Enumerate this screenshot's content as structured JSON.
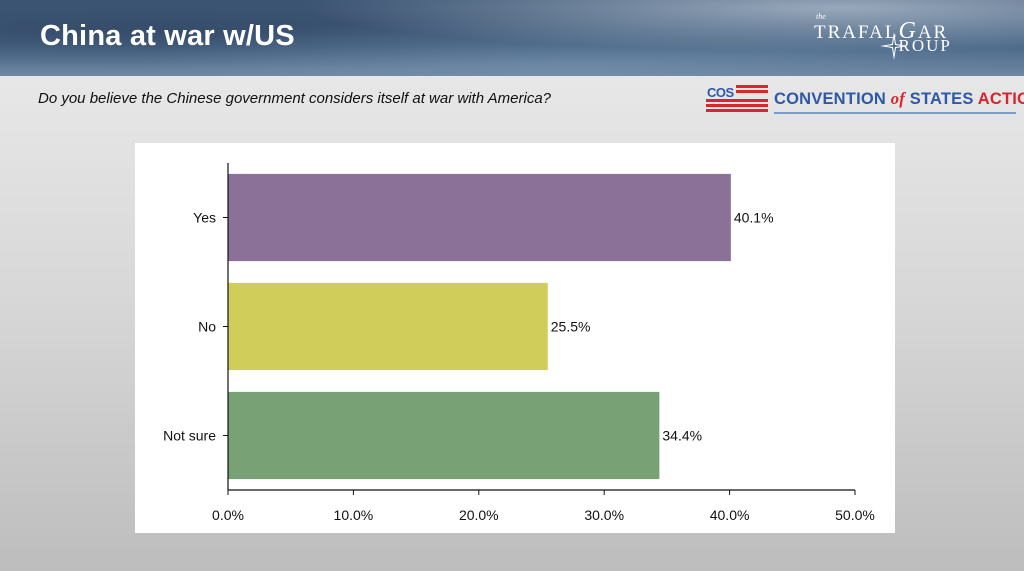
{
  "slide": {
    "title": "China at war w/US",
    "question": "Do you believe the Chinese government considers itself at war with America?"
  },
  "branding": {
    "trafalgar": {
      "the": "the",
      "row1": "TRAFAL",
      "glyph_g": "G",
      "row1_end": "AR",
      "row2": "ROUP"
    },
    "cos": {
      "badge": "COS",
      "word1": "CONVENTION ",
      "word_of": "of",
      "word2": " STATES ",
      "word_action": "ACTION"
    }
  },
  "colors": {
    "yes": "#8b7098",
    "no": "#d0cd5a",
    "not_sure": "#78a176",
    "cos_blue": "#2d59a8",
    "cos_red": "#d8252e"
  },
  "chart_data": {
    "type": "bar",
    "orientation": "horizontal",
    "categories": [
      "Yes",
      "No",
      "Not sure"
    ],
    "values": [
      40.1,
      25.5,
      34.4
    ],
    "value_labels": [
      "40.1%",
      "25.5%",
      "34.4%"
    ],
    "xlim": [
      0,
      50
    ],
    "xticks": [
      0,
      10,
      20,
      30,
      40,
      50
    ],
    "xtick_labels": [
      "0.0%",
      "10.0%",
      "20.0%",
      "30.0%",
      "40.0%",
      "50.0%"
    ],
    "grid": false,
    "legend": "none"
  }
}
